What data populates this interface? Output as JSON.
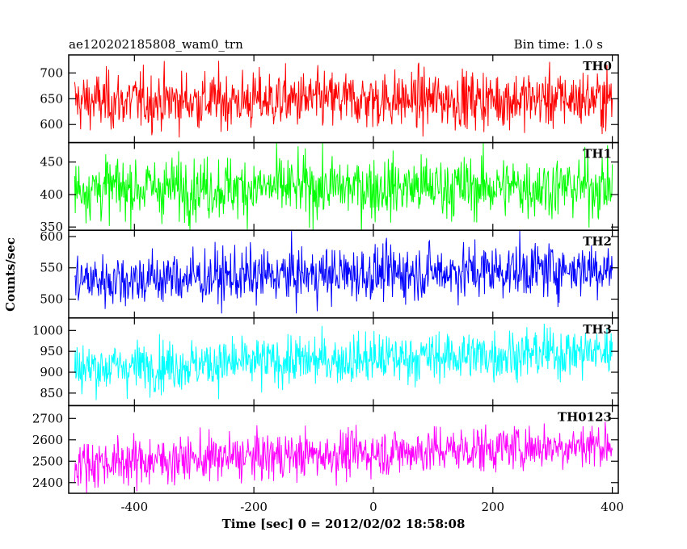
{
  "chart_data": {
    "type": "line",
    "title_left": "ae120202185808_wam0_trn",
    "title_right": "Bin time: 1.0 s",
    "xlabel": "Time [sec] 0 = 2012/02/02 18:58:08",
    "ylabel": "Counts/sec",
    "xlim": [
      -510,
      410
    ],
    "x_ticks": [
      -400,
      -200,
      0,
      200,
      400
    ],
    "x_start": -500,
    "x_end": 400,
    "x_step": 1,
    "grid": false,
    "series": [
      {
        "name": "TH0",
        "color": "#ff0000",
        "ylim": [
          565,
          735
        ],
        "y_ticks": [
          600,
          650,
          700
        ],
        "mean_start": 645,
        "mean_end": 650,
        "noise": 28,
        "range": [
          575,
          735
        ]
      },
      {
        "name": "TH1",
        "color": "#00ff00",
        "ylim": [
          345,
          480
        ],
        "y_ticks": [
          350,
          400,
          450
        ],
        "mean_start": 410,
        "mean_end": 412,
        "noise": 24,
        "range": [
          340,
          480
        ]
      },
      {
        "name": "TH2",
        "color": "#0000ff",
        "ylim": [
          470,
          610
        ],
        "y_ticks": [
          500,
          550,
          600
        ],
        "mean_start": 530,
        "mean_end": 550,
        "noise": 22,
        "range": [
          470,
          610
        ]
      },
      {
        "name": "TH3",
        "color": "#00ffff",
        "ylim": [
          820,
          1030
        ],
        "y_ticks": [
          850,
          900,
          950,
          1000
        ],
        "mean_start": 910,
        "mean_end": 950,
        "noise": 30,
        "range": [
          825,
          1030
        ]
      },
      {
        "name": "TH0123",
        "color": "#ff00ff",
        "ylim": [
          2350,
          2760
        ],
        "y_ticks": [
          2400,
          2500,
          2600,
          2700
        ],
        "mean_start": 2490,
        "mean_end": 2580,
        "noise": 55,
        "range": [
          2350,
          2760
        ]
      }
    ]
  }
}
